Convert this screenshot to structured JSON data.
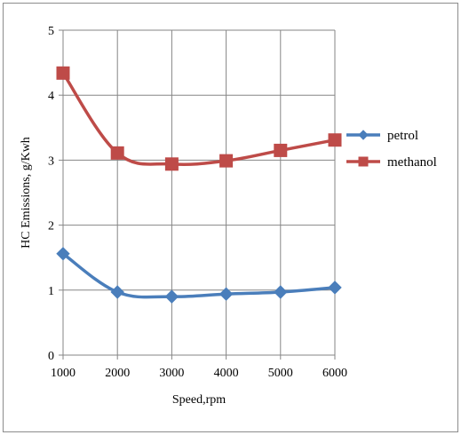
{
  "chart_data": {
    "type": "line",
    "title": "",
    "xlabel": "Speed,rpm",
    "ylabel": "HC Emissions, g/Kwh",
    "x": [
      1000,
      2000,
      3000,
      4000,
      5000,
      6000
    ],
    "x_ticks": [
      "1000",
      "2000",
      "3000",
      "4000",
      "5000",
      "6000"
    ],
    "y_ticks": [
      "0",
      "1",
      "2",
      "3",
      "4",
      "5"
    ],
    "ylim": [
      0,
      5
    ],
    "grid": true,
    "legend_position": "right",
    "smooth": true,
    "series": [
      {
        "name": "petrol",
        "values": [
          1.56,
          0.97,
          0.9,
          0.94,
          0.97,
          1.04
        ],
        "color": "#4a7ebb",
        "marker": "diamond"
      },
      {
        "name": "methanol",
        "values": [
          4.34,
          3.11,
          2.94,
          2.99,
          3.15,
          3.31
        ],
        "color": "#be4b48",
        "marker": "square"
      }
    ]
  }
}
